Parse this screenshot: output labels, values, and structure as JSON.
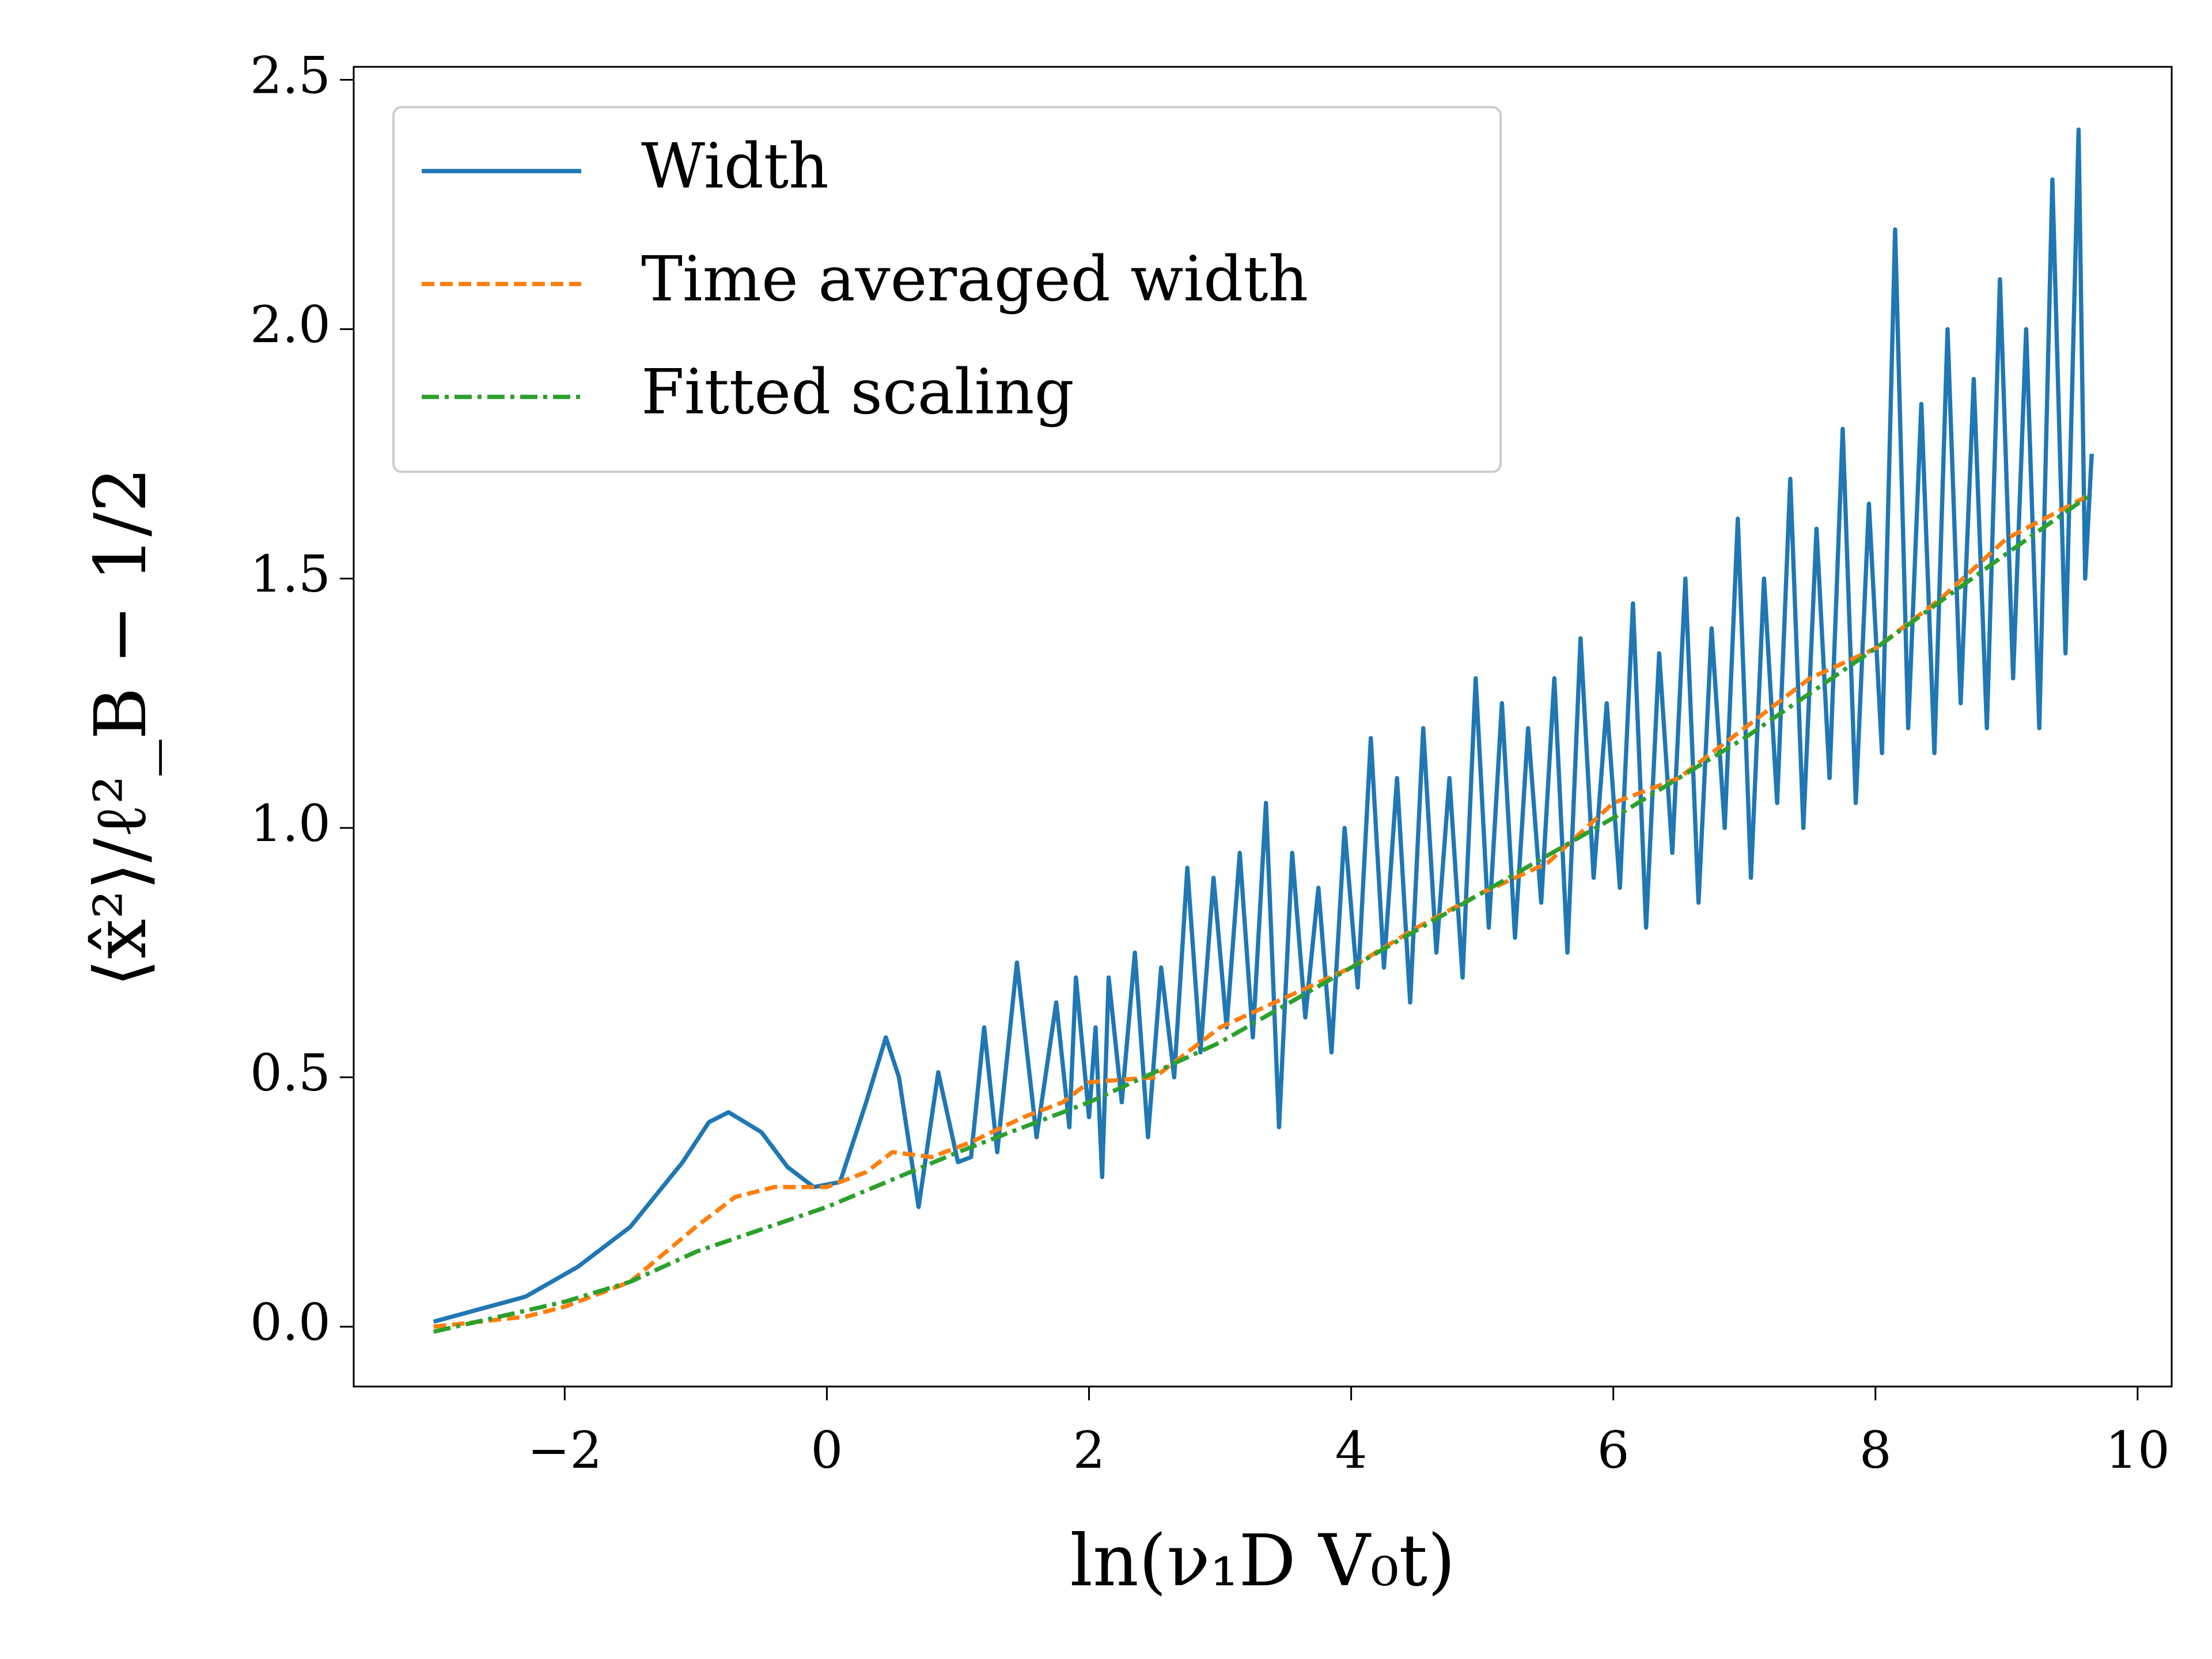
{
  "chart_data": {
    "type": "line",
    "xlabel": "ln(ν₁D V₀t)",
    "ylabel": "⟨x̂²⟩/ℓ²_B − 1/2",
    "xlim": [
      -3.61,
      10.26
    ],
    "ylim": [
      -0.12,
      2.526
    ],
    "xticks": [
      {
        "value": -2,
        "label": "−2"
      },
      0,
      2,
      4,
      6,
      8,
      10
    ],
    "yticks": [
      {
        "value": 0,
        "label": "0.0"
      },
      {
        "value": 0.5,
        "label": "0.5"
      },
      {
        "value": 1,
        "label": "1.0"
      },
      {
        "value": 1.5,
        "label": "1.5"
      },
      {
        "value": 2,
        "label": "2.0"
      },
      {
        "value": 2.5,
        "label": "2.5"
      }
    ],
    "grid": false,
    "legend": "upper left",
    "series": [
      {
        "name": "Width",
        "color": "#1f77b4",
        "linestyle": "solid",
        "x": [
          -3,
          -2.3,
          -1.9,
          -1.5,
          -1.1,
          -0.9,
          -0.75,
          -0.5,
          -0.3,
          -0.1,
          0.1,
          0.3,
          0.45,
          0.55,
          0.7,
          0.85,
          1.0,
          1.1,
          1.2,
          1.3,
          1.45,
          1.6,
          1.75,
          1.85,
          1.9,
          2.0,
          2.05,
          2.1,
          2.15,
          2.25,
          2.35,
          2.45,
          2.55,
          2.65,
          2.75,
          2.85,
          2.95,
          3.05,
          3.15,
          3.25,
          3.35,
          3.45,
          3.55,
          3.65,
          3.75,
          3.85,
          3.95,
          4.05,
          4.15,
          4.25,
          4.35,
          4.45,
          4.55,
          4.65,
          4.75,
          4.85,
          4.95,
          5.05,
          5.15,
          5.25,
          5.35,
          5.45,
          5.55,
          5.65,
          5.75,
          5.85,
          5.95,
          6.05,
          6.15,
          6.25,
          6.35,
          6.45,
          6.55,
          6.65,
          6.75,
          6.85,
          6.95,
          7.05,
          7.15,
          7.25,
          7.35,
          7.45,
          7.55,
          7.65,
          7.75,
          7.85,
          7.95,
          8.05,
          8.15,
          8.25,
          8.35,
          8.45,
          8.55,
          8.65,
          8.75,
          8.85,
          8.95,
          9.05,
          9.15,
          9.25,
          9.35,
          9.45,
          9.55,
          9.6,
          9.65
        ],
        "values": [
          0.01,
          0.06,
          0.12,
          0.2,
          0.33,
          0.41,
          0.43,
          0.39,
          0.32,
          0.28,
          0.29,
          0.45,
          0.58,
          0.5,
          0.24,
          0.51,
          0.33,
          0.34,
          0.6,
          0.35,
          0.73,
          0.38,
          0.65,
          0.4,
          0.7,
          0.42,
          0.6,
          0.3,
          0.7,
          0.45,
          0.75,
          0.38,
          0.72,
          0.5,
          0.92,
          0.55,
          0.9,
          0.6,
          0.95,
          0.58,
          1.05,
          0.4,
          0.95,
          0.62,
          0.88,
          0.55,
          1.0,
          0.68,
          1.18,
          0.72,
          1.1,
          0.65,
          1.2,
          0.75,
          1.1,
          0.7,
          1.3,
          0.8,
          1.25,
          0.78,
          1.2,
          0.85,
          1.3,
          0.75,
          1.38,
          0.9,
          1.25,
          0.88,
          1.45,
          0.8,
          1.35,
          0.95,
          1.5,
          0.85,
          1.4,
          1.0,
          1.62,
          0.9,
          1.5,
          1.05,
          1.7,
          1.0,
          1.6,
          1.1,
          1.8,
          1.05,
          1.65,
          1.15,
          2.2,
          1.2,
          1.85,
          1.15,
          2.0,
          1.25,
          1.9,
          1.2,
          2.1,
          1.3,
          2.0,
          1.2,
          2.3,
          1.35,
          2.4,
          1.5,
          1.75
        ]
      },
      {
        "name": "Time averaged width",
        "color": "#ff7f0e",
        "linestyle": "dashed",
        "x": [
          -3,
          -2.3,
          -2,
          -1.5,
          -1,
          -0.7,
          -0.4,
          0,
          0.3,
          0.5,
          0.8,
          1.1,
          1.5,
          1.8,
          2,
          2.5,
          3,
          3.5,
          4,
          4.5,
          5,
          5.5,
          6,
          6.5,
          7,
          7.5,
          8,
          8.5,
          9,
          9.65
        ],
        "values": [
          0,
          0.02,
          0.04,
          0.09,
          0.2,
          0.26,
          0.28,
          0.28,
          0.31,
          0.35,
          0.34,
          0.37,
          0.42,
          0.45,
          0.49,
          0.5,
          0.6,
          0.66,
          0.72,
          0.8,
          0.87,
          0.93,
          1.05,
          1.1,
          1.2,
          1.3,
          1.36,
          1.46,
          1.58,
          1.67
        ]
      },
      {
        "name": "Fitted scaling",
        "color": "#2ca02c",
        "linestyle": "dashdot",
        "x": [
          -3,
          -2,
          -1.5,
          -1,
          0,
          1,
          2,
          3,
          4,
          5,
          6,
          7,
          8,
          9,
          9.65
        ],
        "values": [
          -0.01,
          0.05,
          0.09,
          0.15,
          0.24,
          0.35,
          0.45,
          0.57,
          0.72,
          0.87,
          1.02,
          1.18,
          1.36,
          1.55,
          1.67
        ]
      }
    ]
  }
}
